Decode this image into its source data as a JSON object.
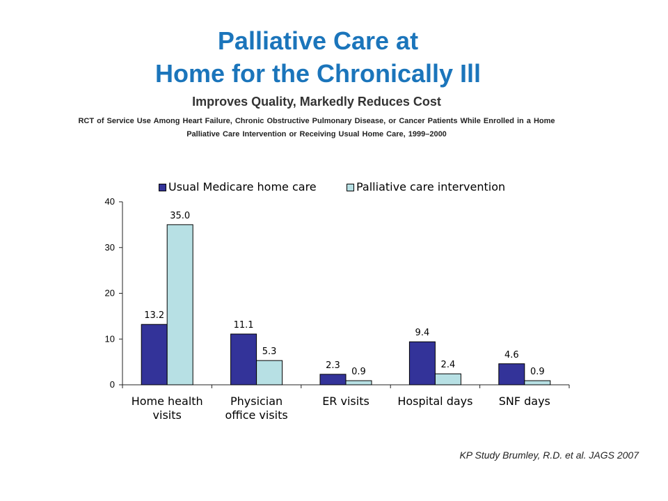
{
  "slide": {
    "title_line1": "Palliative Care at",
    "title_line2": "Home for the Chronically Ill",
    "subtitle": "Improves Quality, Markedly Reduces Cost",
    "description_line1": "RCT of Service Use Among Heart Failure, Chronic Obstructive Pulmonary Disease, or Cancer Patients While Enrolled in a Home",
    "description_line2": "Palliative Care Intervention or Receiving Usual Home Care, 1999–2000",
    "source": "KP Study Brumley, R.D. et al. JAGS 2007"
  },
  "colors": {
    "title": "#1b75bb",
    "usual_care": "#333399",
    "palliative_care": "#b7e0e4"
  },
  "chart_data": {
    "type": "bar",
    "categories": [
      "Home health\nvisits",
      "Physician\noffice visits",
      "ER visits",
      "Hospital days",
      "SNF days"
    ],
    "series": [
      {
        "name": "Usual Medicare home care",
        "values": [
          13.2,
          11.1,
          2.3,
          9.4,
          4.6
        ],
        "color": "#333399"
      },
      {
        "name": "Palliative care intervention",
        "values": [
          35.0,
          5.3,
          0.9,
          2.4,
          0.9
        ],
        "color": "#b7e0e4"
      }
    ],
    "ylim": [
      0,
      40
    ],
    "yticks": [
      0,
      10,
      20,
      30,
      40
    ],
    "data_labels": true,
    "legend": "top",
    "grid": false
  }
}
